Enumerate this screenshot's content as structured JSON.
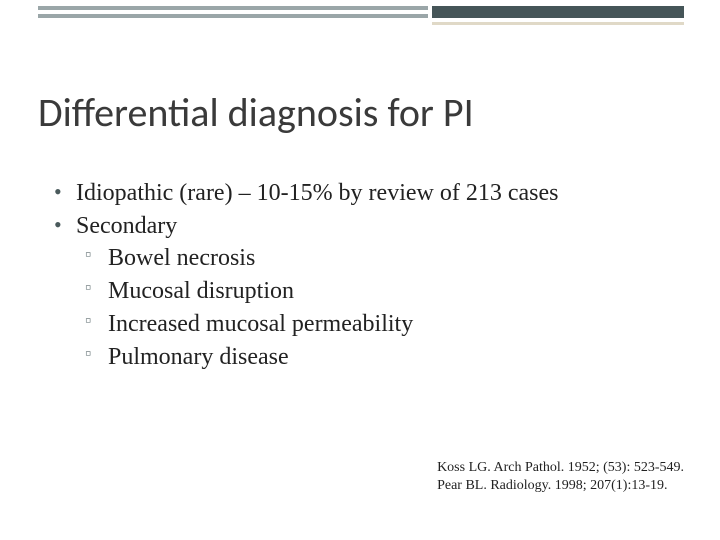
{
  "decoration": {
    "stripe_color": "#9aa6a8",
    "block_color": "#455558",
    "accent_color": "#e0d9c7"
  },
  "title": "Differential diagnosis for PI",
  "bullets": {
    "level1": [
      "Idiopathic (rare) – 10-15% by review of 213 cases",
      "Secondary"
    ],
    "level2": [
      "Bowel necrosis",
      "Mucosal disruption",
      "Increased mucosal permeability",
      "Pulmonary disease"
    ]
  },
  "citations": [
    "Koss LG. Arch Pathol. 1952; (53): 523-549.",
    "Pear BL. Radiology. 1998; 207(1):13-19."
  ],
  "style": {
    "title_fontsize": 40,
    "title_color": "#3a3a3a",
    "body_fontsize": 24,
    "body_color": "#222222",
    "citation_fontsize": 14,
    "bullet_marker_color": "#4a5a5c",
    "subbullet_marker_color": "#7a8688",
    "background_color": "#ffffff"
  }
}
